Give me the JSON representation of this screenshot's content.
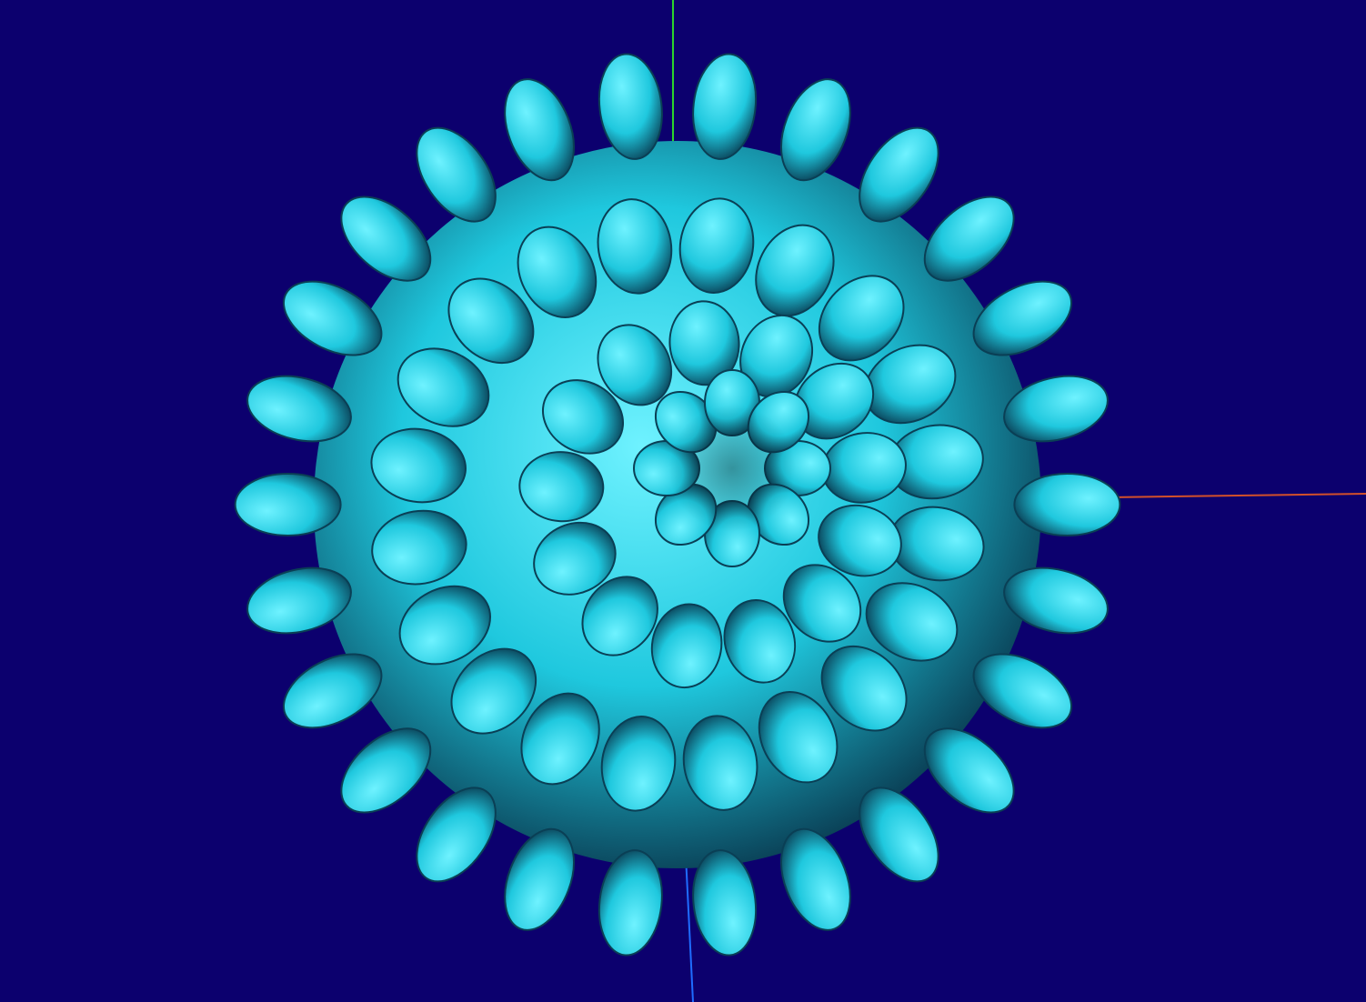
{
  "viewport": {
    "background_color": "#0c006e",
    "view": "3d-render"
  },
  "axes": {
    "x_axis_color": "#d2502a",
    "y_axis_color": "#2cd42c",
    "z_axis_color": "#1f6cff"
  },
  "object": {
    "shape": "spiky-sphere",
    "surface_color": "#1fc8de",
    "highlight_color": "#6ff2ff",
    "shadow_color": "#0a3f55"
  }
}
